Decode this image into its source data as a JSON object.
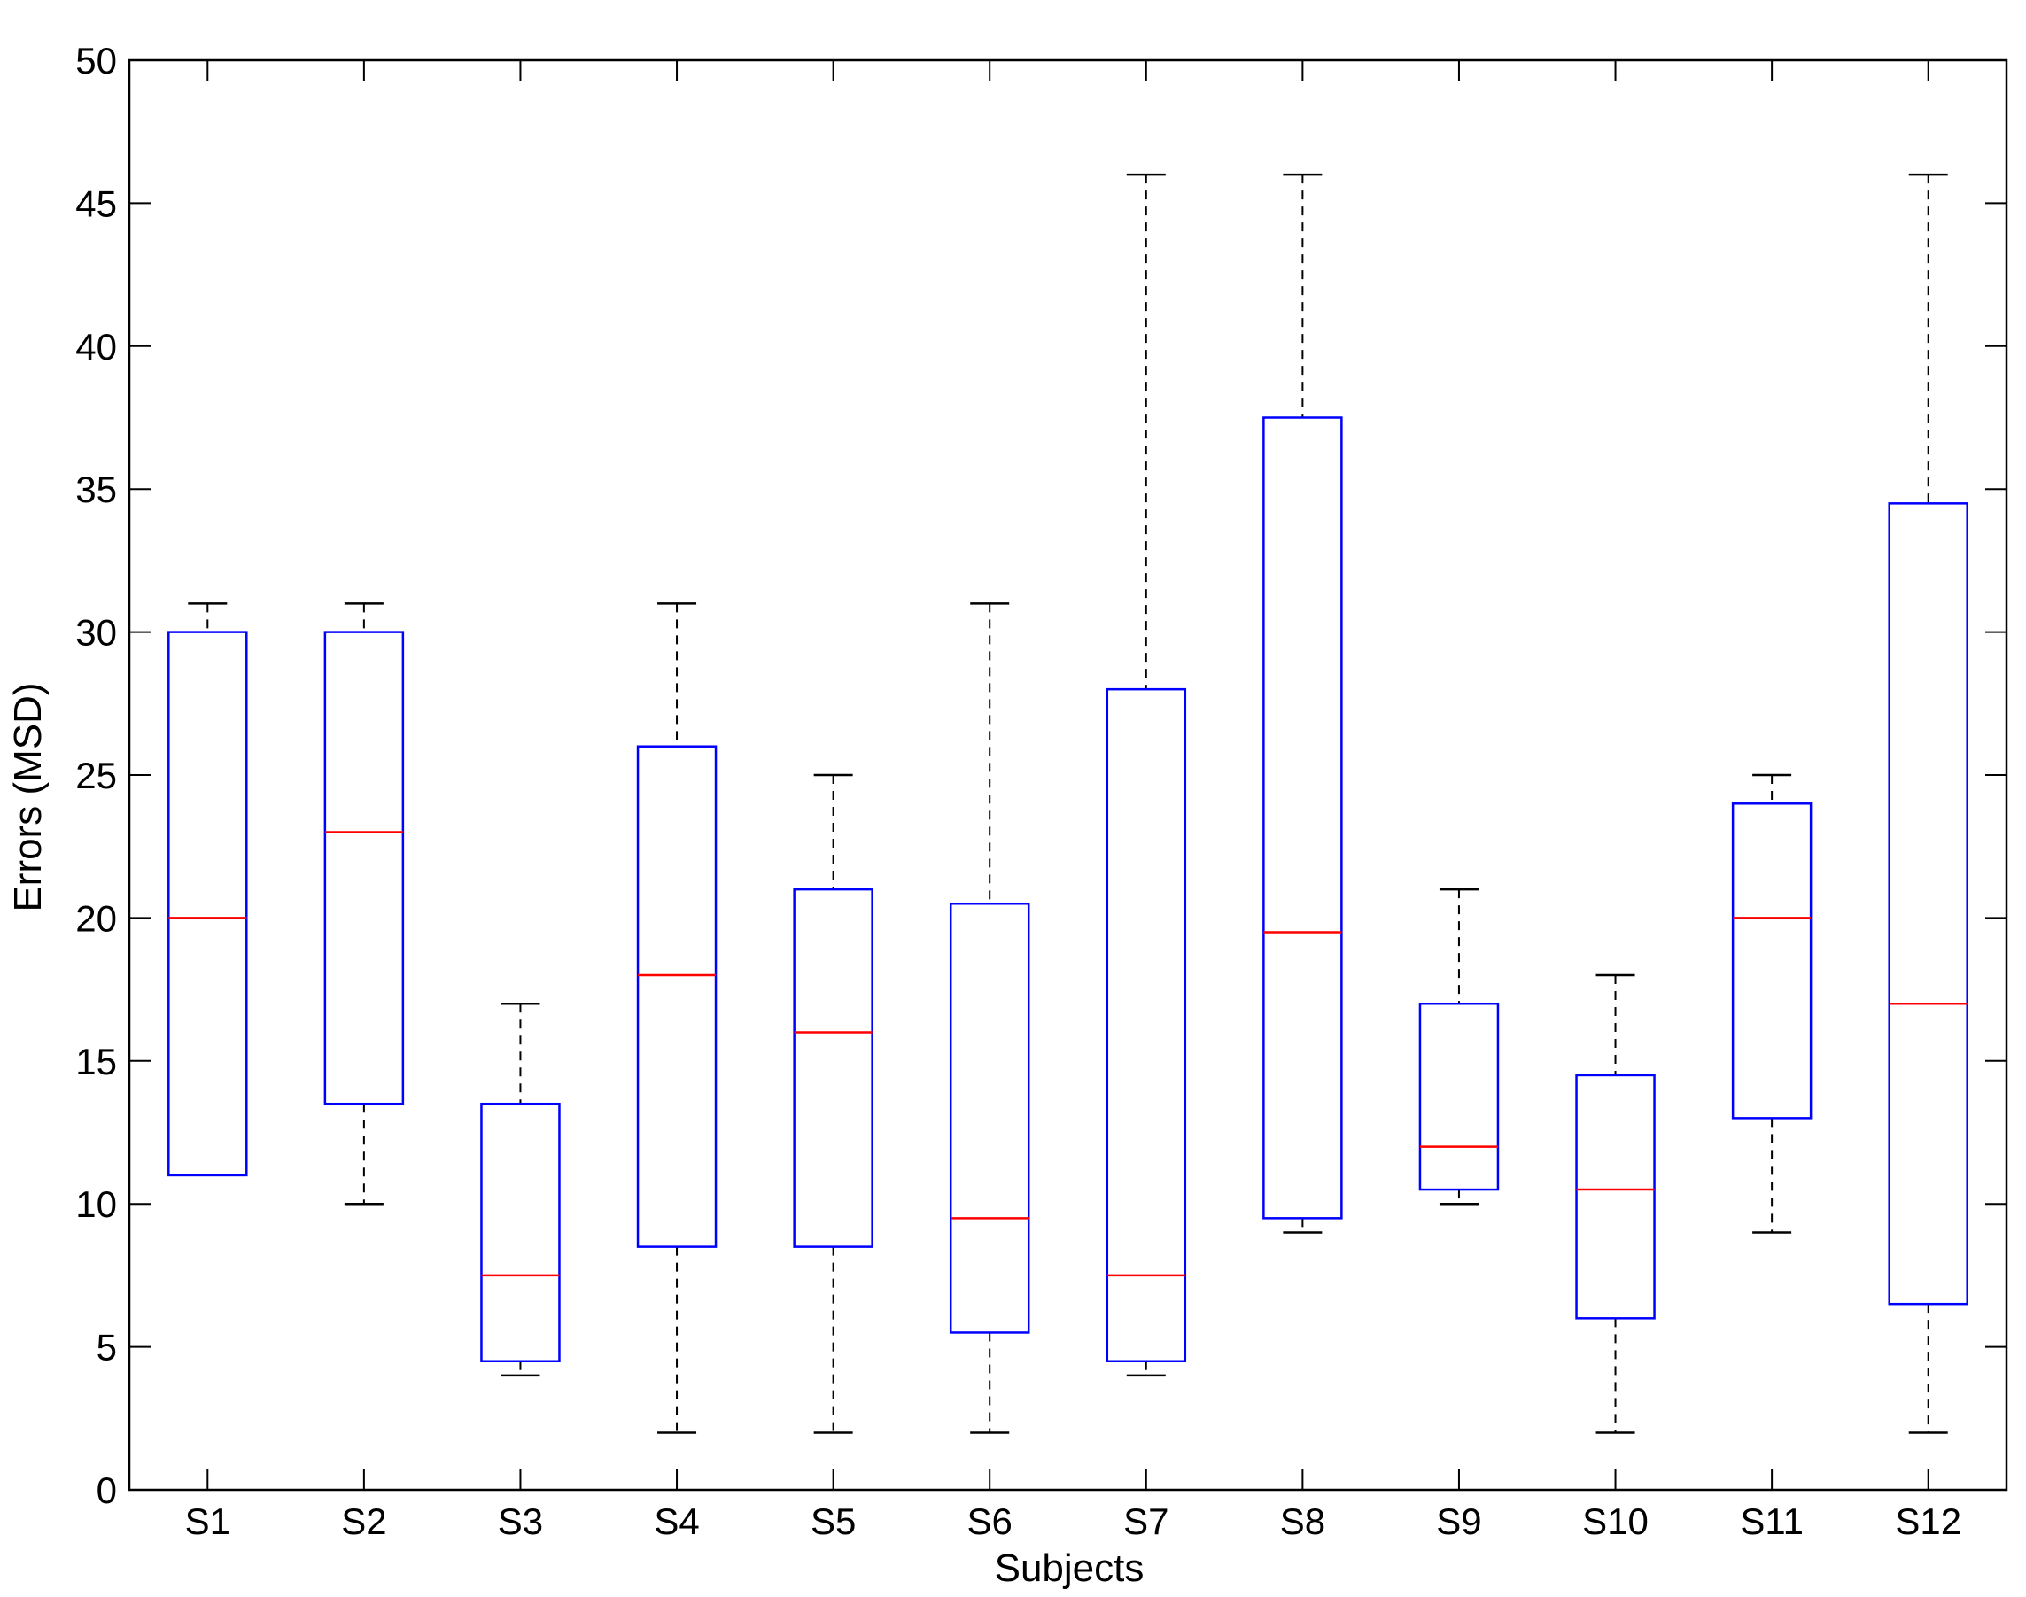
{
  "chart_data": {
    "type": "box",
    "title": "",
    "xlabel": "Subjects",
    "ylabel": "Errors (MSD)",
    "ylim": [
      0,
      50
    ],
    "yticks": [
      0,
      5,
      10,
      15,
      20,
      25,
      30,
      35,
      40,
      45,
      50
    ],
    "grid": false,
    "categories": [
      "S1",
      "S2",
      "S3",
      "S4",
      "S5",
      "S6",
      "S7",
      "S8",
      "S9",
      "S10",
      "S11",
      "S12"
    ],
    "boxes": [
      {
        "label": "S1",
        "whisker_low": 11,
        "q1": 11,
        "median": 20,
        "q3": 30,
        "whisker_high": 31
      },
      {
        "label": "S2",
        "whisker_low": 10,
        "q1": 13.5,
        "median": 23,
        "q3": 30,
        "whisker_high": 31
      },
      {
        "label": "S3",
        "whisker_low": 4,
        "q1": 4.5,
        "median": 7.5,
        "q3": 13.5,
        "whisker_high": 17
      },
      {
        "label": "S4",
        "whisker_low": 2,
        "q1": 8.5,
        "median": 18,
        "q3": 26,
        "whisker_high": 31
      },
      {
        "label": "S5",
        "whisker_low": 2,
        "q1": 8.5,
        "median": 16,
        "q3": 21,
        "whisker_high": 25
      },
      {
        "label": "S6",
        "whisker_low": 2,
        "q1": 5.5,
        "median": 9.5,
        "q3": 20.5,
        "whisker_high": 31
      },
      {
        "label": "S7",
        "whisker_low": 4,
        "q1": 4.5,
        "median": 7.5,
        "q3": 28,
        "whisker_high": 46
      },
      {
        "label": "S8",
        "whisker_low": 9,
        "q1": 9.5,
        "median": 19.5,
        "q3": 37.5,
        "whisker_high": 46
      },
      {
        "label": "S9",
        "whisker_low": 10,
        "q1": 10.5,
        "median": 12,
        "q3": 17,
        "whisker_high": 21
      },
      {
        "label": "S10",
        "whisker_low": 2,
        "q1": 6,
        "median": 10.5,
        "q3": 14.5,
        "whisker_high": 18
      },
      {
        "label": "S11",
        "whisker_low": 9,
        "q1": 13,
        "median": 20,
        "q3": 24,
        "whisker_high": 25
      },
      {
        "label": "S12",
        "whisker_low": 2,
        "q1": 6.5,
        "median": 17,
        "q3": 34.5,
        "whisker_high": 46
      }
    ],
    "colors": {
      "box": "#0000ff",
      "median": "#ff0000",
      "whisker": "#000000",
      "axes": "#000000"
    }
  }
}
